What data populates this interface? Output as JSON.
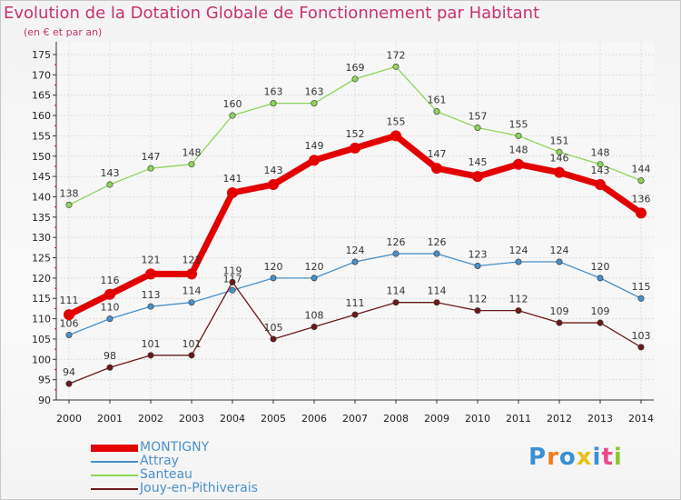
{
  "chart_data": {
    "type": "line",
    "title": "Evolution de la Dotation Globale de Fonctionnement par Habitant",
    "subtitle": "(en € et par an)",
    "categories": [
      "2000",
      "2001",
      "2002",
      "2003",
      "2004",
      "2005",
      "2006",
      "2007",
      "2008",
      "2009",
      "2010",
      "2011",
      "2012",
      "2013",
      "2014"
    ],
    "ylim": [
      90,
      175
    ],
    "yticks": [
      90,
      95,
      100,
      105,
      110,
      115,
      120,
      125,
      130,
      135,
      140,
      145,
      150,
      155,
      160,
      165,
      170,
      175
    ],
    "grid": true,
    "legend_position": "bottom-left",
    "series": [
      {
        "name": "MONTIGNY",
        "color": "#e30000",
        "values": [
          111,
          116,
          121,
          121,
          141,
          143,
          149,
          152,
          155,
          147,
          145,
          148,
          146,
          143,
          136
        ]
      },
      {
        "name": "Attray",
        "color": "#4a90c8",
        "values": [
          106,
          110,
          113,
          114,
          117,
          120,
          120,
          124,
          126,
          126,
          123,
          124,
          124,
          120,
          115
        ]
      },
      {
        "name": "Santeau",
        "color": "#8ed45a",
        "values": [
          138,
          143,
          147,
          148,
          160,
          163,
          163,
          169,
          172,
          161,
          157,
          155,
          151,
          148,
          144
        ]
      },
      {
        "name": "Jouy-en-Pithiverais",
        "color": "#6b1a1a",
        "values": [
          94,
          98,
          101,
          101,
          119,
          105,
          108,
          111,
          114,
          114,
          112,
          112,
          109,
          109,
          103
        ]
      }
    ]
  },
  "logo": {
    "letters": [
      "P",
      "r",
      "o",
      "x",
      "i",
      "t",
      "i"
    ],
    "colors": [
      "#3a8fd6",
      "#f07c1a",
      "#3a8fd6",
      "#e8c21a",
      "#3a8fd6",
      "#e84a8a",
      "#8ac832"
    ]
  }
}
